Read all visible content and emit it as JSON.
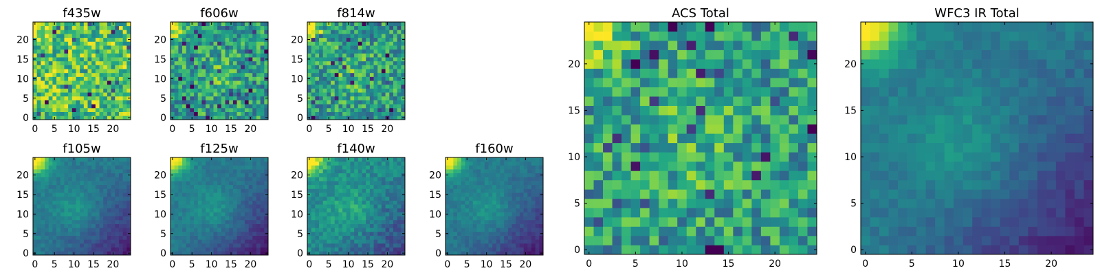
{
  "chart_data": [
    {
      "type": "heatmap",
      "title": "f435w",
      "grid_size": 25,
      "xticks": [
        0,
        5,
        10,
        15,
        20
      ],
      "yticks": [
        0,
        5,
        10,
        15,
        20
      ],
      "xlim": [
        -0.5,
        24.5
      ],
      "ylim": [
        -0.5,
        24.5
      ],
      "colormap": "viridis",
      "pattern": "noisy_high",
      "seed": 11
    },
    {
      "type": "heatmap",
      "title": "f606w",
      "grid_size": 25,
      "xticks": [
        0,
        5,
        10,
        15,
        20
      ],
      "yticks": [
        0,
        5,
        10,
        15,
        20
      ],
      "xlim": [
        -0.5,
        24.5
      ],
      "ylim": [
        -0.5,
        24.5
      ],
      "colormap": "viridis",
      "pattern": "noisy_mid",
      "seed": 23
    },
    {
      "type": "heatmap",
      "title": "f814w",
      "grid_size": 25,
      "xticks": [
        0,
        5,
        10,
        15,
        20
      ],
      "yticks": [
        0,
        5,
        10,
        15,
        20
      ],
      "xlim": [
        -0.5,
        24.5
      ],
      "ylim": [
        -0.5,
        24.5
      ],
      "colormap": "viridis",
      "pattern": "noisy_mid",
      "seed": 37
    },
    {
      "type": "heatmap",
      "title": "f105w",
      "grid_size": 25,
      "xticks": [
        0,
        5,
        10,
        15,
        20
      ],
      "yticks": [
        0,
        5,
        10,
        15,
        20
      ],
      "xlim": [
        -0.5,
        24.5
      ],
      "ylim": [
        -0.5,
        24.5
      ],
      "colormap": "viridis",
      "pattern": "smooth_ir",
      "seed": 41
    },
    {
      "type": "heatmap",
      "title": "f125w",
      "grid_size": 25,
      "xticks": [
        0,
        5,
        10,
        15,
        20
      ],
      "yticks": [
        0,
        5,
        10,
        15,
        20
      ],
      "xlim": [
        -0.5,
        24.5
      ],
      "ylim": [
        -0.5,
        24.5
      ],
      "colormap": "viridis",
      "pattern": "smooth_ir",
      "seed": 53
    },
    {
      "type": "heatmap",
      "title": "f140w",
      "grid_size": 25,
      "xticks": [
        0,
        5,
        10,
        15,
        20
      ],
      "yticks": [
        0,
        5,
        10,
        15,
        20
      ],
      "xlim": [
        -0.5,
        24.5
      ],
      "ylim": [
        -0.5,
        24.5
      ],
      "colormap": "viridis",
      "pattern": "smooth_ir_noisy",
      "seed": 67
    },
    {
      "type": "heatmap",
      "title": "f160w",
      "grid_size": 25,
      "xticks": [
        0,
        5,
        10,
        15,
        20
      ],
      "yticks": [
        0,
        5,
        10,
        15,
        20
      ],
      "xlim": [
        -0.5,
        24.5
      ],
      "ylim": [
        -0.5,
        24.5
      ],
      "colormap": "viridis",
      "pattern": "smooth_ir",
      "seed": 79
    },
    {
      "type": "heatmap",
      "title": "ACS Total",
      "grid_size": 25,
      "xticks": [
        0,
        5,
        10,
        15,
        20
      ],
      "yticks": [
        0,
        5,
        10,
        15,
        20
      ],
      "xlim": [
        -0.5,
        24.5
      ],
      "ylim": [
        -0.5,
        24.5
      ],
      "colormap": "viridis",
      "pattern": "noisy_mid",
      "seed": 97
    },
    {
      "type": "heatmap",
      "title": "WFC3 IR Total",
      "grid_size": 25,
      "xticks": [
        0,
        5,
        10,
        15,
        20
      ],
      "yticks": [
        0,
        5,
        10,
        15,
        20
      ],
      "xlim": [
        -0.5,
        24.5
      ],
      "ylim": [
        -0.5,
        24.5
      ],
      "colormap": "viridis",
      "pattern": "smooth_ir",
      "seed": 101
    }
  ]
}
